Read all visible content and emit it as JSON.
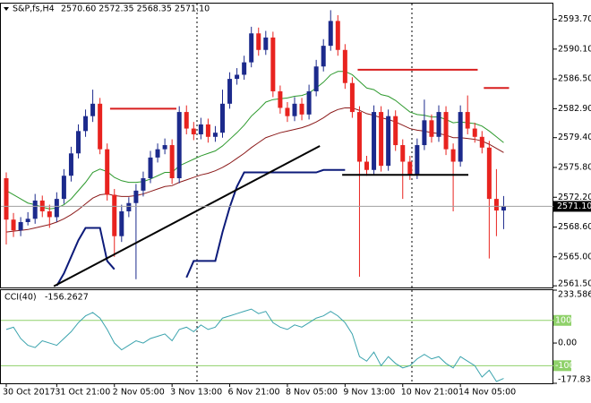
{
  "chart_data": [
    {
      "type": "candlestick",
      "title": "S&P,fs,H4",
      "ohlc_text": "2570.60 2572.35 2568.35 2571.10",
      "categories": [
        "30 Oct 2017",
        null,
        null,
        null,
        null,
        null,
        null,
        "31 Oct 21:00",
        null,
        null,
        null,
        null,
        null,
        null,
        null,
        "2 Nov 05:00",
        null,
        null,
        null,
        null,
        null,
        null,
        null,
        "3 Nov 13:00",
        null,
        null,
        null,
        null,
        null,
        null,
        null,
        "6 Nov 21:00",
        null,
        null,
        null,
        null,
        null,
        null,
        null,
        "8 Nov 05:00",
        null,
        null,
        null,
        null,
        null,
        null,
        null,
        "9 Nov 13:00",
        null,
        null,
        null,
        null,
        null,
        null,
        null,
        "10 Nov 21:00",
        null,
        null,
        null,
        null,
        null,
        null,
        null,
        "14 Nov 05:00",
        null,
        null,
        null,
        null,
        null,
        null
      ],
      "open": [
        2574.5,
        2569.5,
        2568.2,
        2569.2,
        2569.6,
        2571.8,
        2570.5,
        2569.8,
        2572.0,
        2574.8,
        2577.5,
        2580.2,
        2582.0,
        2583.5,
        2578.0,
        2572.5,
        2567.5,
        2570.5,
        2571.5,
        2573.0,
        2574.5,
        2577.0,
        2578.0,
        2578.5,
        2574.5,
        2582.5,
        2580.5,
        2579.8,
        2581.0,
        2579.5,
        2580.0,
        2583.5,
        2586.5,
        2587.0,
        2588.5,
        2592.0,
        2590.0,
        2591.5,
        2585.0,
        2583.0,
        2582.0,
        2583.5,
        2582.2,
        2585.0,
        2588.0,
        2590.5,
        2593.5,
        2590.0,
        2586.0,
        2582.5,
        2576.5,
        2575.5,
        2582.5,
        2576.0,
        2582.0,
        2578.5,
        2576.5,
        2575.0,
        2578.5,
        2581.5,
        2579.5,
        2582.5,
        2578.0,
        2576.5,
        2582.5,
        2580.5,
        2579.5,
        2578.2,
        2572.0,
        2570.6
      ],
      "high": [
        2575.2,
        2570.3,
        2569.8,
        2570.4,
        2572.6,
        2572.4,
        2571.3,
        2572.8,
        2575.6,
        2578.3,
        2581.0,
        2582.8,
        2585.2,
        2584.2,
        2578.7,
        2573.2,
        2571.3,
        2572.2,
        2573.8,
        2575.3,
        2577.8,
        2578.7,
        2579.3,
        2579.2,
        2583.2,
        2583.3,
        2581.3,
        2581.8,
        2581.7,
        2580.8,
        2585.2,
        2587.3,
        2587.8,
        2589.3,
        2592.8,
        2592.7,
        2592.3,
        2592.2,
        2585.7,
        2583.7,
        2584.3,
        2584.2,
        2585.8,
        2588.8,
        2591.3,
        2594.8,
        2594.2,
        2590.7,
        2586.7,
        2583.2,
        2577.2,
        2583.3,
        2583.2,
        2582.8,
        2582.7,
        2579.2,
        2577.2,
        2579.3,
        2584.0,
        2582.2,
        2583.3,
        2583.2,
        2578.7,
        2583.3,
        2584.5,
        2581.2,
        2580.2,
        2579.0,
        2575.6,
        2572.35
      ],
      "low": [
        2566.5,
        2567.4,
        2567.5,
        2568.8,
        2569.0,
        2569.8,
        2568.5,
        2569.2,
        2571.4,
        2574.1,
        2576.9,
        2579.5,
        2581.3,
        2577.4,
        2571.8,
        2565.0,
        2566.8,
        2569.8,
        2562.3,
        2572.3,
        2573.9,
        2576.4,
        2577.4,
        2573.8,
        2573.9,
        2579.8,
        2579.1,
        2579.2,
        2578.8,
        2578.9,
        2579.4,
        2582.9,
        2585.8,
        2586.4,
        2587.9,
        2589.3,
        2589.4,
        2584.3,
        2582.3,
        2581.3,
        2581.4,
        2581.5,
        2581.6,
        2584.4,
        2587.4,
        2589.9,
        2589.3,
        2585.3,
        2581.8,
        2562.6,
        2574.8,
        2574.9,
        2575.3,
        2575.4,
        2577.8,
        2572.0,
        2574.3,
        2574.4,
        2577.9,
        2578.8,
        2578.9,
        2577.3,
        2570.5,
        2575.9,
        2579.8,
        2578.8,
        2577.5,
        2564.8,
        2567.5,
        2568.35
      ],
      "close": [
        2569.5,
        2568.2,
        2569.2,
        2569.6,
        2571.8,
        2570.5,
        2569.8,
        2572.0,
        2574.8,
        2577.5,
        2580.2,
        2582.0,
        2583.5,
        2578.0,
        2572.5,
        2567.5,
        2570.5,
        2571.5,
        2573.0,
        2574.5,
        2577.0,
        2578.0,
        2578.5,
        2574.5,
        2582.5,
        2580.5,
        2579.8,
        2581.0,
        2579.5,
        2580.0,
        2583.5,
        2586.5,
        2587.0,
        2588.5,
        2592.0,
        2590.0,
        2591.5,
        2585.0,
        2583.0,
        2582.0,
        2583.5,
        2582.2,
        2585.0,
        2588.0,
        2590.5,
        2593.5,
        2590.0,
        2586.0,
        2582.5,
        2576.5,
        2575.5,
        2582.5,
        2576.0,
        2582.0,
        2578.5,
        2576.5,
        2575.0,
        2578.5,
        2581.5,
        2579.5,
        2582.5,
        2578.0,
        2576.5,
        2582.5,
        2580.5,
        2579.5,
        2578.2,
        2572.0,
        2570.6,
        2571.1
      ],
      "up_color": "#1c2a8c",
      "down_color": "#e8231f",
      "overlays": [
        {
          "color": "#2e9a2e",
          "values": [
            2573,
            2572.5,
            2572,
            2571.5,
            2571.3,
            2571,
            2570.8,
            2570.9,
            2571.3,
            2572,
            2573,
            2574,
            2575.2,
            2575.6,
            2575.3,
            2574.6,
            2574.2,
            2574,
            2574,
            2574.1,
            2574.4,
            2574.8,
            2575.2,
            2575.2,
            2576,
            2576.4,
            2576.8,
            2577.2,
            2577.5,
            2577.8,
            2578.4,
            2579.2,
            2580,
            2580.9,
            2582,
            2582.8,
            2583.7,
            2584,
            2584.1,
            2584.2,
            2584.4,
            2584.5,
            2584.8,
            2585.4,
            2586.1,
            2587,
            2587.4,
            2587.4,
            2587,
            2586.2,
            2585.4,
            2585.2,
            2584.6,
            2584.4,
            2583.9,
            2583.2,
            2582.5,
            2582.2,
            2582.1,
            2581.9,
            2581.9,
            2581.6,
            2581.2,
            2581.3,
            2581.2,
            2581.1,
            2580.8,
            2580.2,
            2579.5,
            2578.8
          ]
        },
        {
          "color": "#8b1a1a",
          "values": [
            2568,
            2568.1,
            2568.2,
            2568.3,
            2568.5,
            2568.7,
            2568.9,
            2569.2,
            2569.6,
            2570.1,
            2570.7,
            2571.4,
            2572.1,
            2572.5,
            2572.6,
            2572.4,
            2572.3,
            2572.3,
            2572.4,
            2572.6,
            2572.9,
            2573.2,
            2573.5,
            2573.6,
            2574,
            2574.3,
            2574.6,
            2574.9,
            2575.1,
            2575.4,
            2575.8,
            2576.3,
            2576.9,
            2577.5,
            2578.2,
            2578.8,
            2579.4,
            2579.7,
            2580,
            2580.2,
            2580.4,
            2580.6,
            2580.9,
            2581.3,
            2581.8,
            2582.4,
            2582.8,
            2583,
            2583,
            2582.7,
            2582.3,
            2582.1,
            2581.8,
            2581.6,
            2581.3,
            2580.9,
            2580.5,
            2580.3,
            2580.2,
            2580,
            2579.9,
            2579.7,
            2579.4,
            2579.4,
            2579.3,
            2579.2,
            2579,
            2578.6,
            2578.1,
            2577.6
          ]
        },
        {
          "color": "#0d1b7a",
          "values": [
            null,
            null,
            null,
            null,
            null,
            null,
            null,
            2561.5,
            2563,
            2565,
            2567,
            2568.5,
            2568.5,
            2568.5,
            2564.5,
            2563.5,
            null,
            null,
            null,
            null,
            null,
            null,
            null,
            null,
            null,
            2562.5,
            2564.5,
            2564.5,
            2564.5,
            2564.5,
            2568,
            2571,
            2573.5,
            2575.2,
            2575.2,
            2575.2,
            2575.2,
            2575.2,
            2575.2,
            2575.2,
            2575.2,
            2575.2,
            2575.2,
            2575.2,
            2575.5,
            2575.5,
            2575.5,
            2575.5,
            null,
            null,
            null,
            null,
            null,
            null,
            null,
            null,
            null,
            null,
            null,
            null,
            null,
            null,
            null,
            null,
            null,
            null,
            null,
            null,
            null,
            null
          ]
        }
      ],
      "objects": [
        {
          "color": "#000000",
          "x": [
            6.6,
            43.5
          ],
          "y": [
            2561.45,
            2578.4
          ]
        },
        {
          "color": "#d81e1e",
          "x": [
            14.4,
            23.6
          ],
          "y": [
            2582.9,
            2582.9
          ]
        },
        {
          "color": "#d81e1e",
          "x": [
            48.75,
            65.4
          ],
          "y": [
            2587.6,
            2587.6
          ]
        },
        {
          "color": "#d81e1e",
          "x": [
            66.25,
            69.75
          ],
          "y": [
            2585.4,
            2585.4
          ]
        },
        {
          "color": "#000000",
          "x": [
            46.6,
            64.1
          ],
          "y": [
            2574.9,
            2574.9
          ]
        }
      ],
      "last_price": {
        "value": 2571.1,
        "label": "2571.10"
      },
      "ylim": [
        2561.3,
        2595.6
      ],
      "yticks": [
        {
          "value": 2593.7,
          "label": "2593.70"
        },
        {
          "value": 2590.1,
          "label": "2590.10"
        },
        {
          "value": 2586.5,
          "label": "2586.50"
        },
        {
          "value": 2582.9,
          "label": "2582.90"
        },
        {
          "value": 2579.4,
          "label": "2579.40"
        },
        {
          "value": 2575.8,
          "label": "2575.80"
        },
        {
          "value": 2572.2,
          "label": "2572.20"
        },
        {
          "value": 2568.6,
          "label": "2568.60"
        },
        {
          "value": 2565,
          "label": "2565.00"
        },
        {
          "value": 2561.5,
          "label": "2561.50"
        }
      ]
    },
    {
      "type": "line",
      "title": "CCI(40)",
      "last_value_label": "-156.2627",
      "color": "#3aa3ad",
      "values": [
        60,
        70,
        20,
        -10,
        -20,
        10,
        0,
        -10,
        20,
        50,
        90,
        120,
        135,
        110,
        60,
        0,
        -30,
        -10,
        10,
        0,
        20,
        30,
        40,
        10,
        60,
        70,
        50,
        80,
        60,
        70,
        110,
        120,
        130,
        140,
        150,
        130,
        140,
        90,
        70,
        60,
        80,
        70,
        90,
        110,
        120,
        140,
        120,
        90,
        40,
        -60,
        -80,
        -40,
        -100,
        -60,
        -90,
        -110,
        -100,
        -70,
        -50,
        -70,
        -60,
        -90,
        -110,
        -60,
        -80,
        -100,
        -150,
        -120,
        -170,
        -156.2627
      ],
      "ylim": [
        -177.8349,
        233.5861
      ],
      "yticks": [
        233.5861,
        {
          "value": 0,
          "label": "0.00"
        },
        -177.8349
      ],
      "levels": [
        {
          "value": 100,
          "label": "100"
        },
        {
          "value": -100,
          "label": "-100"
        }
      ],
      "level_color": "#8fd16a"
    }
  ]
}
